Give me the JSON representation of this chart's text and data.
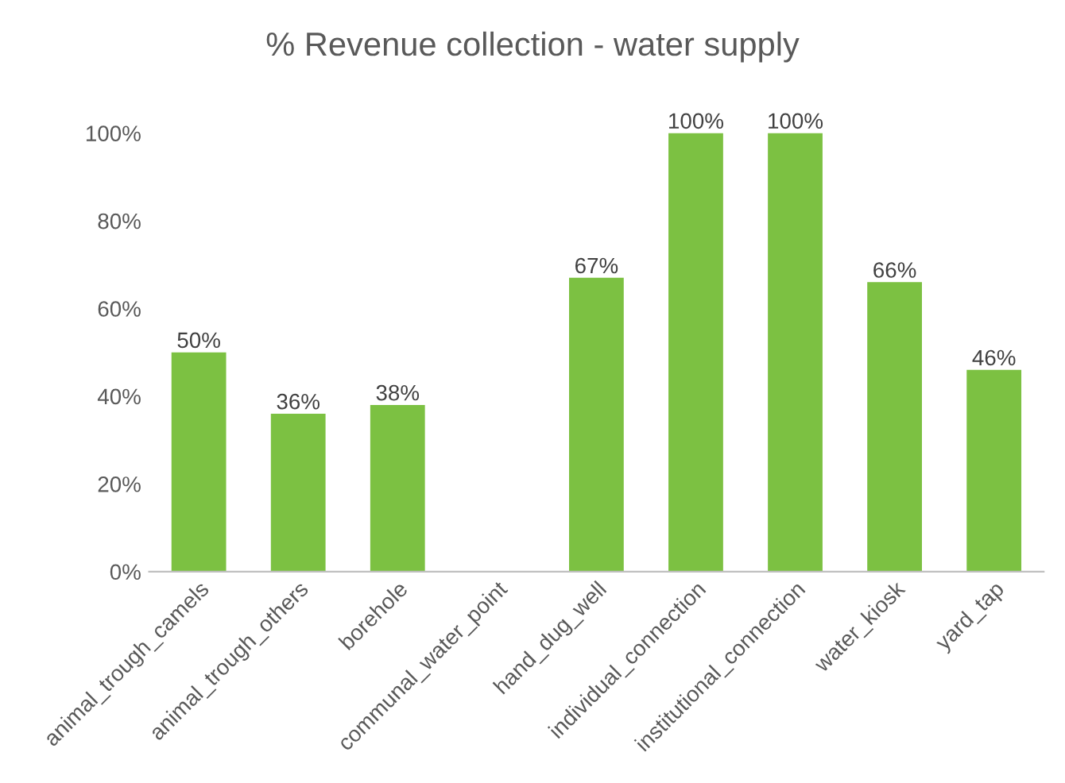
{
  "chart_data": {
    "type": "bar",
    "title": "% Revenue collection - water supply",
    "categories": [
      "animal_trough_camels",
      "animal_trough_others",
      "borehole",
      "communal_water_point",
      "hand_dug_well",
      "individual_connection",
      "institutional_connection",
      "water_kiosk",
      "yard_tap"
    ],
    "values": [
      50,
      36,
      38,
      null,
      67,
      100,
      100,
      66,
      46
    ],
    "value_labels": [
      "50%",
      "36%",
      "38%",
      null,
      "67%",
      "100%",
      "100%",
      "66%",
      "46%"
    ],
    "color": "#7cc142",
    "ylim": [
      0,
      100
    ],
    "yticks": [
      {
        "value": 0,
        "label": "0%"
      },
      {
        "value": 20,
        "label": "20%"
      },
      {
        "value": 40,
        "label": "40%"
      },
      {
        "value": 60,
        "label": "60%"
      },
      {
        "value": 80,
        "label": "80%"
      },
      {
        "value": 100,
        "label": "100%"
      }
    ],
    "grid": false,
    "legend": false
  }
}
